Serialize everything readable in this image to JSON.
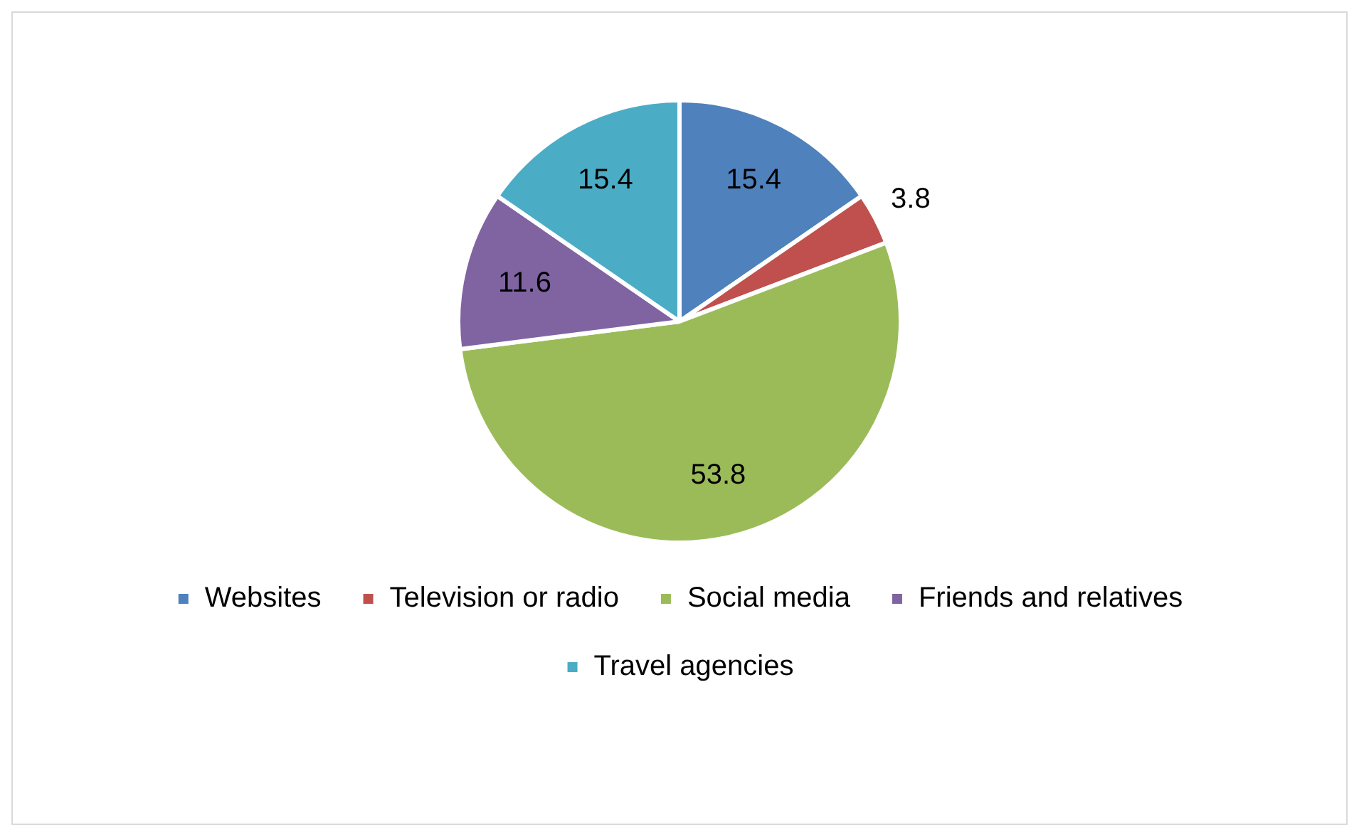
{
  "chart_data": {
    "type": "pie",
    "categories": [
      "Websites",
      "Television or radio",
      "Social media",
      "Friends and relatives",
      "Travel agencies"
    ],
    "values": [
      15.4,
      3.8,
      53.8,
      11.6,
      15.4
    ],
    "colors": [
      "#4f81bd",
      "#c0504d",
      "#9bbb59",
      "#8064a2",
      "#4bacc6"
    ],
    "data_labels": true,
    "legend": "bottom"
  }
}
